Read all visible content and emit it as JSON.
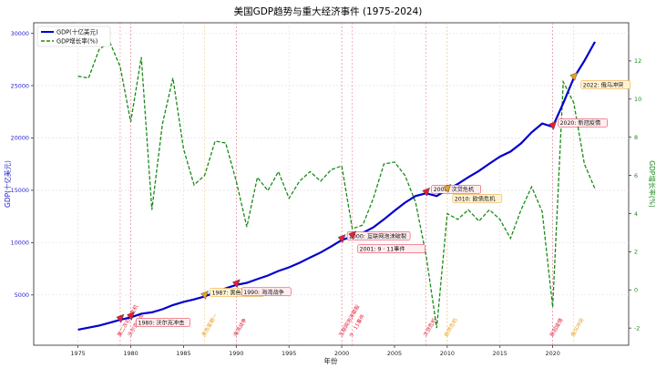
{
  "chart_data": {
    "type": "line",
    "title": "美国GDP趋势与重大经济事件 (1975-2024)",
    "xlabel": "年份",
    "ylabel_left": "GDP(十亿美元)",
    "ylabel_right": "GDP增长率(%)",
    "xlim": [
      1970.8,
      2027.2
    ],
    "ylim_left": [
      200,
      31000
    ],
    "ylim_right": [
      -2.9,
      14.0
    ],
    "x_ticks": [
      1975,
      1980,
      1985,
      1990,
      1995,
      2000,
      2005,
      2010,
      2015,
      2020
    ],
    "y_ticks_left": [
      5000,
      10000,
      15000,
      20000,
      25000,
      30000
    ],
    "y_ticks_right": [
      -2,
      0,
      2,
      4,
      6,
      8,
      10,
      12
    ],
    "grid": true,
    "legend_position": "top-left",
    "colors": {
      "gdp": "#0000cc",
      "growth": "#1a8a1a",
      "red_event": "#e0203a",
      "orange_event": "#e8a020"
    },
    "series": [
      {
        "name": "GDP(十亿美元)",
        "axis": "left",
        "x": [
          1975,
          1976,
          1977,
          1978,
          1979,
          1980,
          1981,
          1982,
          1983,
          1984,
          1985,
          1986,
          1987,
          1988,
          1989,
          1990,
          1991,
          1992,
          1993,
          1994,
          1995,
          1996,
          1997,
          1998,
          1999,
          2000,
          2001,
          2002,
          2003,
          2004,
          2005,
          2006,
          2007,
          2008,
          2009,
          2010,
          2011,
          2012,
          2013,
          2014,
          2015,
          2016,
          2017,
          2018,
          2019,
          2020,
          2021,
          2022,
          2023,
          2024
        ],
        "values": [
          1690,
          1880,
          2080,
          2350,
          2630,
          2860,
          3210,
          3340,
          3640,
          4040,
          4340,
          4580,
          4860,
          5240,
          5640,
          5960,
          6160,
          6520,
          6860,
          7290,
          7640,
          8070,
          8580,
          9060,
          9630,
          10250,
          10580,
          10940,
          11460,
          12220,
          13040,
          13820,
          14450,
          14710,
          14450,
          15050,
          15600,
          16250,
          16840,
          17550,
          18210,
          18700,
          19480,
          20530,
          21380,
          21060,
          23320,
          25740,
          27360,
          29180
        ]
      },
      {
        "name": "GDP增长率(%)",
        "axis": "right",
        "x": [
          1975,
          1976,
          1977,
          1978,
          1979,
          1980,
          1981,
          1982,
          1983,
          1984,
          1985,
          1986,
          1987,
          1988,
          1989,
          1990,
          1991,
          1992,
          1993,
          1994,
          1995,
          1996,
          1997,
          1998,
          1999,
          2000,
          2001,
          2002,
          2003,
          2004,
          2005,
          2006,
          2007,
          2008,
          2009,
          2010,
          2011,
          2012,
          2013,
          2014,
          2015,
          2016,
          2017,
          2018,
          2019,
          2020,
          2021,
          2022,
          2023,
          2024
        ],
        "values": [
          11.2,
          11.1,
          12.6,
          13.0,
          11.7,
          8.8,
          12.2,
          4.2,
          8.7,
          11.1,
          7.4,
          5.5,
          6.0,
          7.8,
          7.7,
          5.7,
          3.3,
          5.9,
          5.2,
          6.2,
          4.8,
          5.7,
          6.2,
          5.7,
          6.3,
          6.5,
          3.2,
          3.4,
          4.8,
          6.6,
          6.7,
          6.0,
          4.6,
          1.8,
          -2.0,
          4.0,
          3.7,
          4.2,
          3.6,
          4.2,
          3.7,
          2.7,
          4.2,
          5.4,
          4.1,
          -0.9,
          10.9,
          9.8,
          6.6,
          5.3
        ]
      }
    ],
    "events": [
      {
        "year": 1979,
        "label": "1979: 第二次石油危机",
        "vlabel": "第二次石油危机",
        "color": "red"
      },
      {
        "year": 1980,
        "label": "1980: 沃尔克冲击",
        "vlabel": "沃尔克冲击",
        "color": "red"
      },
      {
        "year": 1987,
        "label": "1987: 黑色星期一",
        "vlabel": "黑色星期一",
        "color": "orange"
      },
      {
        "year": 1990,
        "label": "1990: 海湾战争",
        "vlabel": "海湾战争",
        "color": "red"
      },
      {
        "year": 2000,
        "label": "2000: 互联网泡沫破裂",
        "vlabel": "互联网泡沫破裂",
        "color": "red"
      },
      {
        "year": 2001,
        "label": "2001: 9 · 11事件",
        "vlabel": "9 · 11事件",
        "color": "red"
      },
      {
        "year": 2008,
        "label": "2008: 次贷危机",
        "vlabel": "次贷危机",
        "color": "red"
      },
      {
        "year": 2010,
        "label": "2010: 欧债危机",
        "vlabel": "欧债危机",
        "color": "orange"
      },
      {
        "year": 2020,
        "label": "2020: 新冠疫情",
        "vlabel": "新冠疫情",
        "color": "red"
      },
      {
        "year": 2022,
        "label": "2022: 俄乌冲突",
        "vlabel": "俄乌冲突",
        "color": "orange"
      }
    ]
  }
}
